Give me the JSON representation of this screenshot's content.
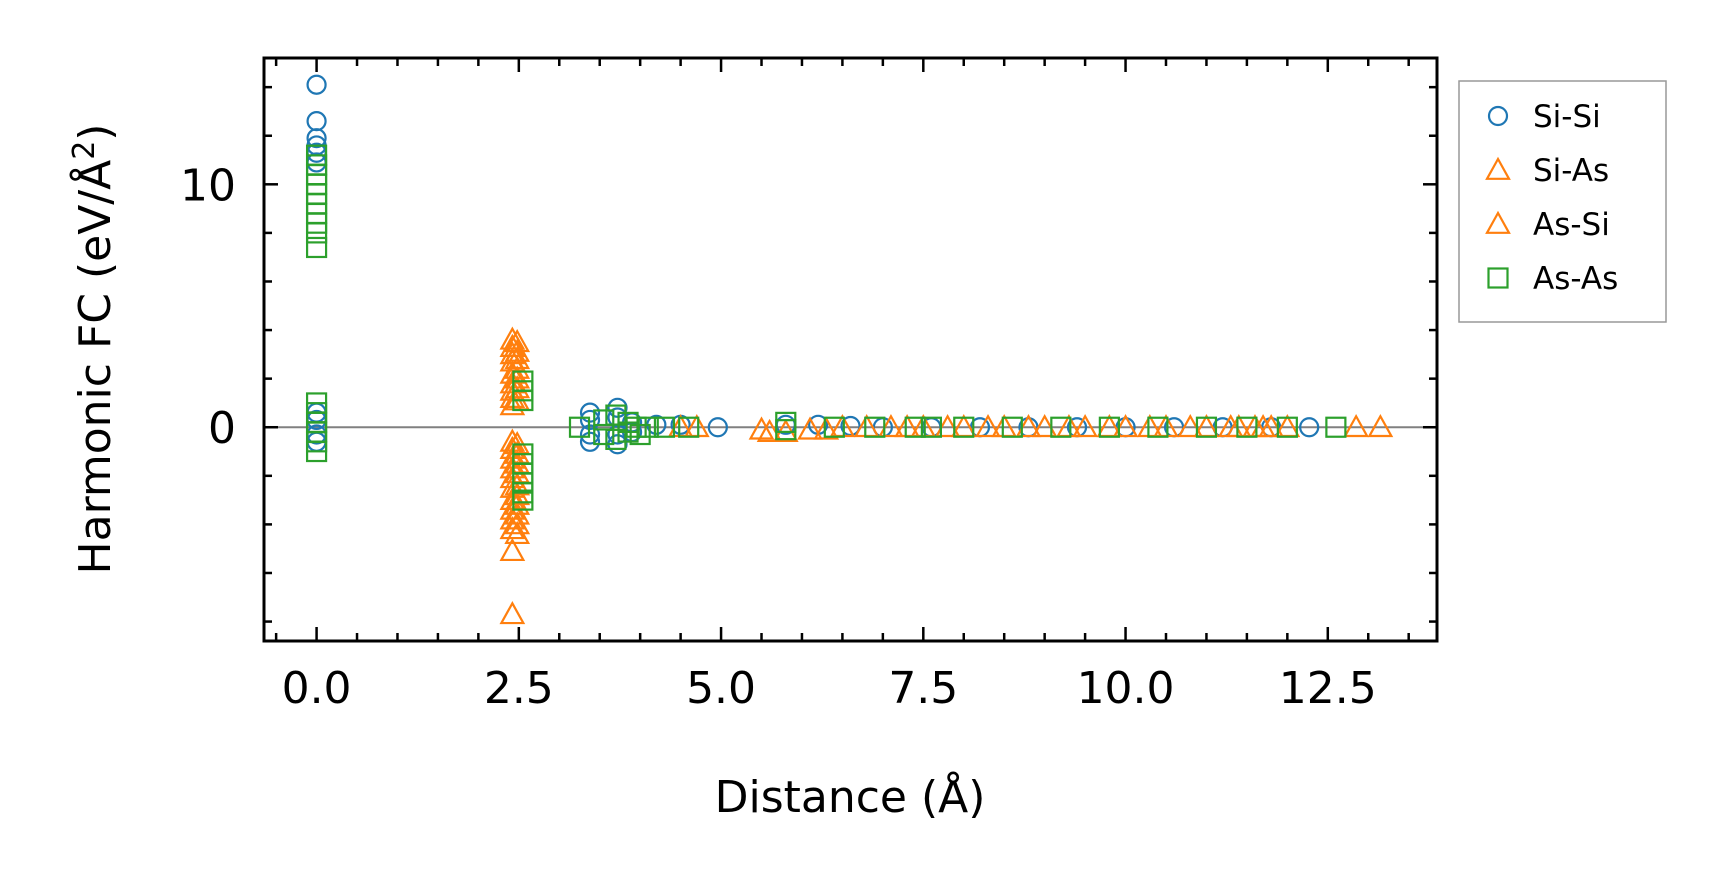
{
  "chart_data": {
    "type": "scatter",
    "title": "",
    "xlabel": "Distance (Å)",
    "ylabel_main": "Harmonic FC (eV/Å",
    "ylabel_sup": "2",
    "ylabel_close": ")",
    "xlim": [
      -0.65,
      13.85
    ],
    "ylim": [
      -8.8,
      15.2
    ],
    "xticks": [
      0.0,
      2.5,
      5.0,
      7.5,
      10.0,
      12.5
    ],
    "xtick_labels": [
      "0.0",
      "2.5",
      "5.0",
      "7.5",
      "10.0",
      "12.5"
    ],
    "xminor_step": 0.5,
    "yticks": [
      0,
      10
    ],
    "ytick_labels": [
      "0",
      "10"
    ],
    "yminor_step": 2,
    "zero_line": true,
    "grid": false,
    "legend_position": "outside-right-top",
    "colors": {
      "Si-Si": "#1f77b4",
      "Si-As": "#ff7f0e",
      "As-Si": "#ff7f0e",
      "As-As": "#2ca02c",
      "zero_line": "#808080"
    },
    "series": [
      {
        "name": "Si-Si",
        "marker": "circle",
        "points": [
          [
            0,
            14.1
          ],
          [
            0,
            12.6
          ],
          [
            0,
            11.9
          ],
          [
            0,
            11.6
          ],
          [
            0,
            11.3
          ],
          [
            0,
            10.9
          ],
          [
            0,
            0.6
          ],
          [
            0,
            0.3
          ],
          [
            0,
            -0.3
          ],
          [
            0,
            -0.6
          ],
          [
            3.38,
            0.6
          ],
          [
            3.38,
            0.3
          ],
          [
            3.38,
            -0.3
          ],
          [
            3.38,
            -0.6
          ],
          [
            3.72,
            0.8
          ],
          [
            3.72,
            0.4
          ],
          [
            3.72,
            -0.3
          ],
          [
            3.72,
            -0.7
          ],
          [
            3.9,
            0.2
          ],
          [
            3.9,
            -0.2
          ],
          [
            4.2,
            0.1
          ],
          [
            4.5,
            0.1
          ],
          [
            4.96,
            0
          ],
          [
            5.8,
            0.1
          ],
          [
            6.2,
            0.1
          ],
          [
            6.6,
            0.05
          ],
          [
            7.0,
            0
          ],
          [
            7.6,
            0
          ],
          [
            8.2,
            0
          ],
          [
            8.8,
            0
          ],
          [
            9.4,
            0
          ],
          [
            10.0,
            0
          ],
          [
            10.6,
            0
          ],
          [
            11.2,
            0
          ],
          [
            11.8,
            0
          ],
          [
            12.27,
            0
          ]
        ]
      },
      {
        "name": "Si-As",
        "marker": "triangle",
        "points": [
          [
            2.42,
            3.6
          ],
          [
            2.42,
            3.3
          ],
          [
            2.42,
            3.0
          ],
          [
            2.42,
            2.7
          ],
          [
            2.42,
            2.2
          ],
          [
            2.42,
            1.8
          ],
          [
            2.42,
            1.5
          ],
          [
            2.42,
            1.2
          ],
          [
            2.42,
            0.9
          ],
          [
            2.42,
            -0.6
          ],
          [
            2.42,
            -0.9
          ],
          [
            2.42,
            -1.3
          ],
          [
            2.42,
            -1.7
          ],
          [
            2.42,
            -2.1
          ],
          [
            2.42,
            -2.5
          ],
          [
            2.42,
            -3.0
          ],
          [
            2.42,
            -3.4
          ],
          [
            2.42,
            -3.8
          ],
          [
            2.42,
            -4.2
          ],
          [
            2.42,
            -5.1
          ],
          [
            2.42,
            -7.7
          ],
          [
            4.5,
            0
          ],
          [
            5.5,
            -0.1
          ],
          [
            5.8,
            -0.2
          ],
          [
            6.3,
            -0.1
          ],
          [
            6.8,
            0
          ],
          [
            7.3,
            0
          ],
          [
            7.8,
            0
          ],
          [
            8.3,
            0
          ],
          [
            8.8,
            0
          ],
          [
            9.3,
            0
          ],
          [
            9.8,
            0
          ],
          [
            10.3,
            0
          ],
          [
            10.8,
            0
          ],
          [
            11.3,
            0
          ],
          [
            11.6,
            0
          ],
          [
            11.8,
            0
          ],
          [
            12.0,
            0
          ],
          [
            12.85,
            0
          ],
          [
            13.15,
            0
          ]
        ]
      },
      {
        "name": "As-Si",
        "marker": "triangle",
        "points": [
          [
            2.48,
            3.5
          ],
          [
            2.48,
            3.1
          ],
          [
            2.48,
            2.8
          ],
          [
            2.48,
            2.4
          ],
          [
            2.48,
            2.0
          ],
          [
            2.48,
            1.6
          ],
          [
            2.48,
            1.1
          ],
          [
            2.48,
            -0.7
          ],
          [
            2.48,
            -1.1
          ],
          [
            2.48,
            -1.5
          ],
          [
            2.48,
            -1.9
          ],
          [
            2.48,
            -2.4
          ],
          [
            2.48,
            -2.8
          ],
          [
            2.48,
            -3.2
          ],
          [
            2.48,
            -3.6
          ],
          [
            2.48,
            -4.0
          ],
          [
            2.48,
            -4.4
          ],
          [
            4.7,
            0
          ],
          [
            5.6,
            -0.2
          ],
          [
            6.1,
            -0.1
          ],
          [
            6.5,
            0
          ],
          [
            7.1,
            0
          ],
          [
            7.5,
            0
          ],
          [
            8.0,
            0
          ],
          [
            8.5,
            0
          ],
          [
            9.0,
            0
          ],
          [
            9.5,
            0
          ],
          [
            10.0,
            0
          ],
          [
            10.5,
            0
          ],
          [
            11.0,
            0
          ],
          [
            11.4,
            0
          ],
          [
            11.7,
            0
          ]
        ]
      },
      {
        "name": "As-As",
        "marker": "square",
        "points": [
          [
            0,
            11.2
          ],
          [
            0,
            10.8
          ],
          [
            0,
            10.4
          ],
          [
            0,
            10.0
          ],
          [
            0,
            9.6
          ],
          [
            0,
            9.2
          ],
          [
            0,
            8.8
          ],
          [
            0,
            8.4
          ],
          [
            0,
            8.0
          ],
          [
            0,
            7.4
          ],
          [
            0,
            1.0
          ],
          [
            0,
            0.6
          ],
          [
            0,
            0.2
          ],
          [
            0,
            -0.2
          ],
          [
            0,
            -0.6
          ],
          [
            0,
            -1.0
          ],
          [
            2.55,
            1.9
          ],
          [
            2.55,
            1.5
          ],
          [
            2.55,
            1.1
          ],
          [
            2.55,
            -1.1
          ],
          [
            2.55,
            -1.5
          ],
          [
            2.55,
            -1.9
          ],
          [
            2.55,
            -2.3
          ],
          [
            2.55,
            -2.7
          ],
          [
            2.55,
            -3.0
          ],
          [
            3.25,
            0
          ],
          [
            3.55,
            0.3
          ],
          [
            3.55,
            -0.3
          ],
          [
            3.7,
            0.5
          ],
          [
            3.7,
            -0.5
          ],
          [
            3.85,
            0.2
          ],
          [
            3.85,
            -0.2
          ],
          [
            3.95,
            0
          ],
          [
            4.0,
            -0.3
          ],
          [
            4.1,
            0
          ],
          [
            4.3,
            0
          ],
          [
            4.6,
            0
          ],
          [
            5.8,
            0.2
          ],
          [
            5.8,
            -0.1
          ],
          [
            6.4,
            0
          ],
          [
            6.9,
            0
          ],
          [
            7.4,
            0
          ],
          [
            7.6,
            0
          ],
          [
            8.0,
            0
          ],
          [
            8.6,
            0
          ],
          [
            9.2,
            0
          ],
          [
            9.8,
            0
          ],
          [
            10.4,
            0
          ],
          [
            11.0,
            0
          ],
          [
            11.5,
            0
          ],
          [
            12.0,
            0
          ],
          [
            12.6,
            0
          ]
        ]
      }
    ]
  }
}
